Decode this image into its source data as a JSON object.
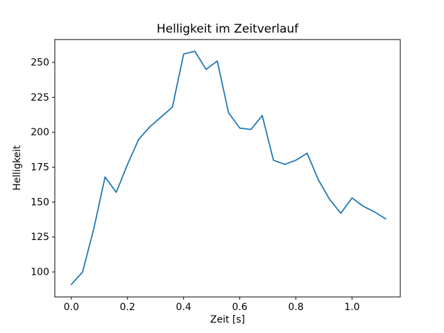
{
  "figure": {
    "background": "#ffffff",
    "text_color": "#000000"
  },
  "chart_data": {
    "type": "line",
    "title": "Helligkeit im Zeitverlauf",
    "xlabel": "Zeit [s]",
    "ylabel": "Helligkeit",
    "x": [
      0.0,
      0.04,
      0.08,
      0.12,
      0.16,
      0.2,
      0.24,
      0.28,
      0.32,
      0.36,
      0.4,
      0.44,
      0.48,
      0.52,
      0.56,
      0.6,
      0.64,
      0.68,
      0.72,
      0.76,
      0.8,
      0.84,
      0.88,
      0.92,
      0.96,
      1.0,
      1.04,
      1.08,
      1.12
    ],
    "series": [
      {
        "name": "Helligkeit",
        "color": "#1f77b4",
        "values": [
          91,
          100,
          131,
          168,
          157,
          177,
          195,
          204,
          211,
          218,
          256,
          258,
          245,
          251,
          214,
          203,
          202,
          212,
          180,
          177,
          180,
          185,
          166,
          152,
          142,
          153,
          147,
          143,
          138
        ]
      }
    ],
    "xticks": [
      0.0,
      0.2,
      0.4,
      0.6,
      0.8,
      1.0
    ],
    "xtick_labels": [
      "0.0",
      "0.2",
      "0.4",
      "0.6",
      "0.8",
      "1.0"
    ],
    "yticks": [
      100,
      125,
      150,
      175,
      200,
      225,
      250
    ],
    "ytick_labels": [
      "100",
      "125",
      "150",
      "175",
      "200",
      "225",
      "250"
    ],
    "xlim": [
      -0.059,
      1.172
    ],
    "ylim": [
      82.1,
      266.4
    ],
    "grid": false,
    "legend": "none",
    "line_width": 1.8,
    "text_color": "#000000"
  }
}
